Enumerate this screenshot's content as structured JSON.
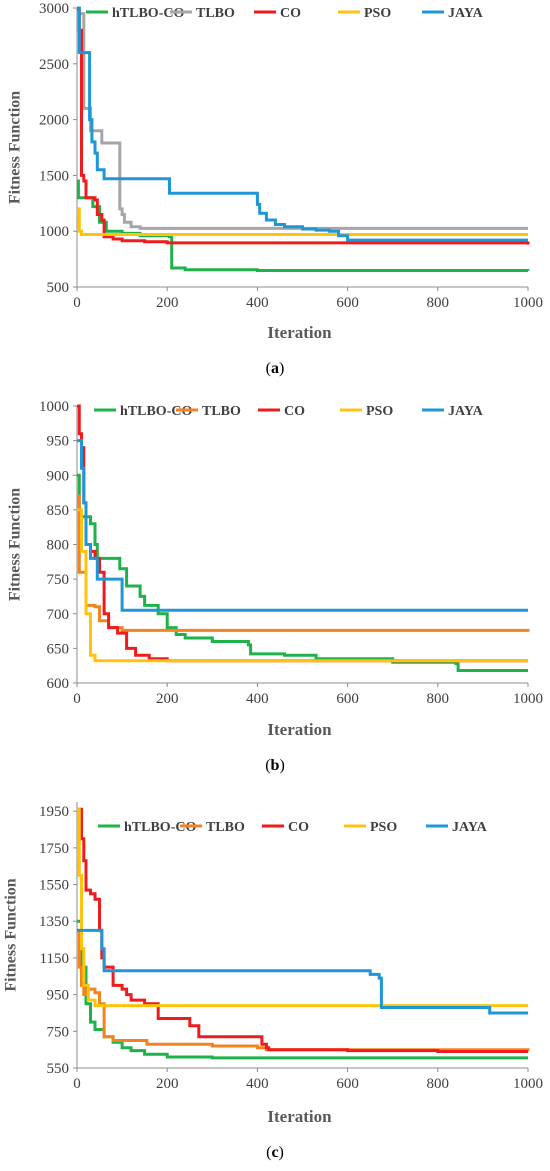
{
  "chart_data": [
    {
      "type": "line",
      "caption": "(a)",
      "xlabel": "Iteration",
      "ylabel": "Fitness Function",
      "xlim": [
        0,
        1000
      ],
      "ylim": [
        500,
        3000
      ],
      "xticks": [
        0,
        200,
        400,
        600,
        800,
        1000
      ],
      "yticks": [
        500,
        1000,
        1500,
        2000,
        2500,
        3000
      ],
      "grid": false,
      "legend_position": "top",
      "series": [
        {
          "name": "hTLBO-CO",
          "color": "#1fb24a",
          "points": [
            [
              0,
              1450
            ],
            [
              3,
              1300
            ],
            [
              30,
              1300
            ],
            [
              35,
              1220
            ],
            [
              45,
              1220
            ],
            [
              50,
              1080
            ],
            [
              60,
              1080
            ],
            [
              65,
              1000
            ],
            [
              100,
              980
            ],
            [
              140,
              960
            ],
            [
              205,
              950
            ],
            [
              210,
              670
            ],
            [
              240,
              655
            ],
            [
              400,
              648
            ],
            [
              1000,
              645
            ]
          ]
        },
        {
          "name": "TLBO",
          "color": "#a6a6a6",
          "points": [
            [
              0,
              2950
            ],
            [
              10,
              2950
            ],
            [
              15,
              2100
            ],
            [
              25,
              2100
            ],
            [
              30,
              1900
            ],
            [
              50,
              1900
            ],
            [
              55,
              1790
            ],
            [
              90,
              1790
            ],
            [
              95,
              1200
            ],
            [
              100,
              1150
            ],
            [
              105,
              1080
            ],
            [
              120,
              1040
            ],
            [
              140,
              1025
            ],
            [
              1000,
              1025
            ]
          ]
        },
        {
          "name": "CO",
          "color": "#ee1c1c",
          "points": [
            [
              0,
              2990
            ],
            [
              5,
              2800
            ],
            [
              10,
              1500
            ],
            [
              15,
              1450
            ],
            [
              20,
              1300
            ],
            [
              40,
              1280
            ],
            [
              45,
              1150
            ],
            [
              55,
              1100
            ],
            [
              60,
              950
            ],
            [
              80,
              930
            ],
            [
              100,
              915
            ],
            [
              150,
              905
            ],
            [
              200,
              895
            ],
            [
              1000,
              880
            ]
          ]
        },
        {
          "name": "PSO",
          "color": "#ffc20e",
          "points": [
            [
              0,
              1200
            ],
            [
              5,
              1000
            ],
            [
              10,
              970
            ],
            [
              1000,
              970
            ]
          ]
        },
        {
          "name": "JAYA",
          "color": "#1f96d6",
          "points": [
            [
              0,
              3000
            ],
            [
              5,
              2600
            ],
            [
              25,
              2600
            ],
            [
              28,
              2000
            ],
            [
              33,
              1800
            ],
            [
              40,
              1700
            ],
            [
              45,
              1550
            ],
            [
              55,
              1550
            ],
            [
              60,
              1470
            ],
            [
              200,
              1470
            ],
            [
              205,
              1340
            ],
            [
              390,
              1340
            ],
            [
              400,
              1240
            ],
            [
              405,
              1160
            ],
            [
              420,
              1100
            ],
            [
              440,
              1060
            ],
            [
              460,
              1040
            ],
            [
              500,
              1020
            ],
            [
              530,
              1010
            ],
            [
              560,
              1000
            ],
            [
              580,
              960
            ],
            [
              600,
              920
            ],
            [
              1000,
              920
            ]
          ]
        }
      ]
    },
    {
      "type": "line",
      "caption": "(b)",
      "xlabel": "Iteration",
      "ylabel": "Fitness Function",
      "xlim": [
        0,
        1000
      ],
      "ylim": [
        600,
        1000
      ],
      "xticks": [
        0,
        200,
        400,
        600,
        800,
        1000
      ],
      "yticks": [
        600,
        650,
        700,
        750,
        800,
        850,
        900,
        950,
        1000
      ],
      "grid": false,
      "legend_position": "top",
      "series": [
        {
          "name": "hTLBO-CO",
          "color": "#1fb24a",
          "points": [
            [
              0,
              900
            ],
            [
              5,
              850
            ],
            [
              10,
              840
            ],
            [
              20,
              840
            ],
            [
              30,
              830
            ],
            [
              40,
              800
            ],
            [
              45,
              780
            ],
            [
              90,
              780
            ],
            [
              95,
              765
            ],
            [
              100,
              765
            ],
            [
              110,
              740
            ],
            [
              140,
              725
            ],
            [
              150,
              712
            ],
            [
              175,
              712
            ],
            [
              180,
              700
            ],
            [
              200,
              680
            ],
            [
              220,
              670
            ],
            [
              240,
              665
            ],
            [
              300,
              660
            ],
            [
              380,
              655
            ],
            [
              385,
              642
            ],
            [
              460,
              640
            ],
            [
              530,
              635
            ],
            [
              700,
              630
            ],
            [
              840,
              628
            ],
            [
              845,
              618
            ],
            [
              1000,
              618
            ]
          ]
        },
        {
          "name": "TLBO",
          "color": "#f58220",
          "points": [
            [
              0,
              870
            ],
            [
              5,
              760
            ],
            [
              15,
              760
            ],
            [
              20,
              712
            ],
            [
              40,
              710
            ],
            [
              50,
              690
            ],
            [
              70,
              680
            ],
            [
              100,
              676
            ],
            [
              1000,
              674
            ]
          ]
        },
        {
          "name": "CO",
          "color": "#ee1c1c",
          "points": [
            [
              0,
              1000
            ],
            [
              5,
              960
            ],
            [
              10,
              940
            ],
            [
              15,
              860
            ],
            [
              20,
              800
            ],
            [
              30,
              790
            ],
            [
              40,
              780
            ],
            [
              50,
              760
            ],
            [
              60,
              700
            ],
            [
              70,
              680
            ],
            [
              90,
              672
            ],
            [
              110,
              650
            ],
            [
              130,
              640
            ],
            [
              160,
              635
            ],
            [
              200,
              632
            ],
            [
              1000,
              632
            ]
          ]
        },
        {
          "name": "PSO",
          "color": "#ffc20e",
          "points": [
            [
              0,
              850
            ],
            [
              10,
              790
            ],
            [
              20,
              700
            ],
            [
              30,
              640
            ],
            [
              40,
              632
            ],
            [
              1000,
              632
            ]
          ]
        },
        {
          "name": "JAYA",
          "color": "#1f96d6",
          "points": [
            [
              0,
              950
            ],
            [
              10,
              910
            ],
            [
              15,
              860
            ],
            [
              20,
              800
            ],
            [
              30,
              780
            ],
            [
              40,
              780
            ],
            [
              45,
              750
            ],
            [
              95,
              750
            ],
            [
              100,
              705
            ],
            [
              1000,
              705
            ]
          ]
        }
      ]
    },
    {
      "type": "line",
      "caption": "(c)",
      "xlabel": "Iteration",
      "ylabel": "Fitness Function",
      "xlim": [
        0,
        1000
      ],
      "ylim": [
        550,
        2000
      ],
      "xticks": [
        0,
        200,
        400,
        600,
        800,
        1000
      ],
      "yticks": [
        550,
        750,
        950,
        1150,
        1350,
        1550,
        1750,
        1950
      ],
      "grid": false,
      "legend_position": "top",
      "series": [
        {
          "name": "hTLBO-CO",
          "color": "#1fb24a",
          "points": [
            [
              0,
              1350
            ],
            [
              10,
              1100
            ],
            [
              20,
              900
            ],
            [
              30,
              800
            ],
            [
              40,
              760
            ],
            [
              60,
              720
            ],
            [
              80,
              690
            ],
            [
              100,
              660
            ],
            [
              120,
              645
            ],
            [
              150,
              625
            ],
            [
              200,
              610
            ],
            [
              300,
              605
            ],
            [
              1000,
              605
            ]
          ]
        },
        {
          "name": "TLBO",
          "color": "#f58220",
          "points": [
            [
              0,
              1300
            ],
            [
              5,
              1100
            ],
            [
              10,
              1000
            ],
            [
              15,
              950
            ],
            [
              20,
              980
            ],
            [
              30,
              980
            ],
            [
              40,
              960
            ],
            [
              50,
              900
            ],
            [
              60,
              720
            ],
            [
              70,
              720
            ],
            [
              80,
              700
            ],
            [
              150,
              700
            ],
            [
              155,
              680
            ],
            [
              300,
              670
            ],
            [
              400,
              660
            ],
            [
              420,
              650
            ],
            [
              1000,
              640
            ]
          ]
        },
        {
          "name": "CO",
          "color": "#ee1c1c",
          "points": [
            [
              0,
              1960
            ],
            [
              10,
              1800
            ],
            [
              15,
              1680
            ],
            [
              20,
              1520
            ],
            [
              30,
              1500
            ],
            [
              40,
              1470
            ],
            [
              50,
              1300
            ],
            [
              55,
              1150
            ],
            [
              60,
              1100
            ],
            [
              80,
              1000
            ],
            [
              100,
              980
            ],
            [
              110,
              950
            ],
            [
              120,
              920
            ],
            [
              150,
              900
            ],
            [
              180,
              820
            ],
            [
              240,
              820
            ],
            [
              250,
              780
            ],
            [
              270,
              720
            ],
            [
              400,
              720
            ],
            [
              410,
              680
            ],
            [
              420,
              660
            ],
            [
              425,
              650
            ],
            [
              600,
              645
            ],
            [
              800,
              640
            ],
            [
              1000,
              640
            ]
          ]
        },
        {
          "name": "PSO",
          "color": "#ffc20e",
          "points": [
            [
              0,
              1960
            ],
            [
              5,
              1600
            ],
            [
              10,
              1200
            ],
            [
              15,
              1000
            ],
            [
              25,
              920
            ],
            [
              40,
              890
            ],
            [
              1000,
              890
            ]
          ]
        },
        {
          "name": "JAYA",
          "color": "#1f96d6",
          "points": [
            [
              0,
              1300
            ],
            [
              50,
              1300
            ],
            [
              55,
              1200
            ],
            [
              60,
              1080
            ],
            [
              630,
              1080
            ],
            [
              650,
              1060
            ],
            [
              670,
              1040
            ],
            [
              675,
              880
            ],
            [
              910,
              880
            ],
            [
              915,
              850
            ],
            [
              1000,
              850
            ]
          ]
        }
      ]
    }
  ]
}
